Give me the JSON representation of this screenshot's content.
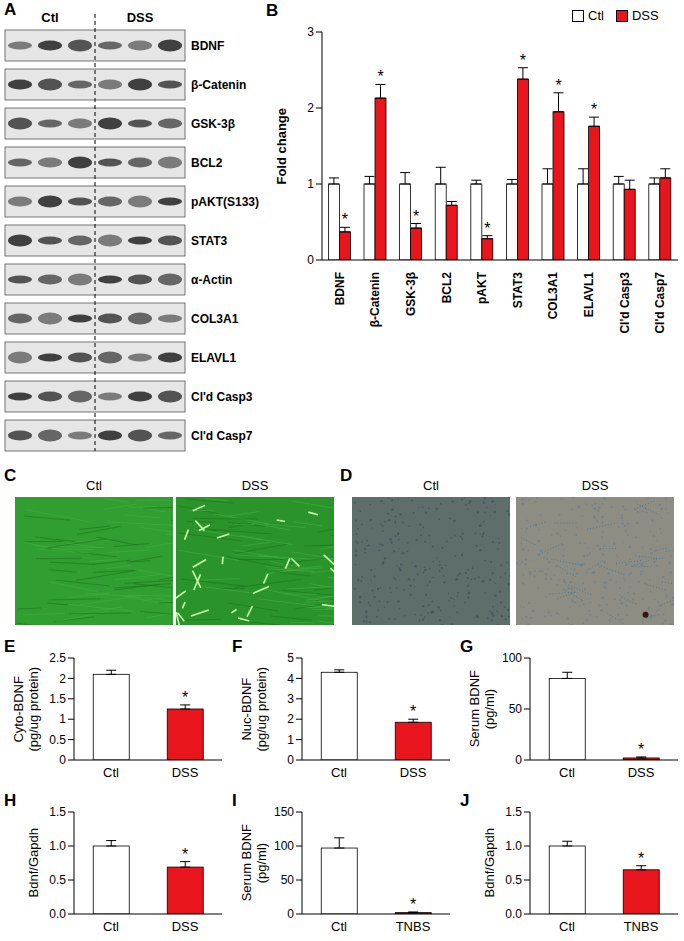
{
  "blot": {
    "panel": "A",
    "groups": [
      "Ctl",
      "DSS"
    ],
    "bands": [
      "BDNF",
      "β-Catenin",
      "GSK-3β",
      "BCL2",
      "pAKT(S133)",
      "STAT3",
      "α-Actin",
      "COL3A1",
      "ELAVL1",
      "Cl'd Casp3",
      "Cl'd Casp7"
    ]
  },
  "micrographs": [
    {
      "panel": "C",
      "images": [
        "Ctl",
        "DSS"
      ]
    },
    {
      "panel": "D",
      "images": [
        "Ctl",
        "DSS"
      ]
    }
  ],
  "chart_data": [
    {
      "panel": "B",
      "type": "bar",
      "categories": [
        "BDNF",
        "β-Catenin",
        "GSK-3β",
        "BCL2",
        "pAKT",
        "STAT3",
        "COL3A1",
        "ELAVL1",
        "Cl'd Casp3",
        "Cl'd Casp7"
      ],
      "ylabel": [
        "Fold change"
      ],
      "ylim": [
        0,
        3
      ],
      "yticks": [
        0,
        1,
        2,
        3
      ],
      "legend": "upper right",
      "series": [
        {
          "name": "Ctl",
          "color": "#ffffff",
          "values": [
            1,
            1,
            1,
            1,
            1,
            1,
            1,
            1,
            1,
            1
          ],
          "errors": [
            0.08,
            0.1,
            0.15,
            0.22,
            0.05,
            0.06,
            0.2,
            0.2,
            0.1,
            0.08
          ],
          "annotations": [
            null,
            null,
            null,
            null,
            null,
            null,
            null,
            null,
            null,
            null
          ]
        },
        {
          "name": "DSS",
          "color": "#e8161c",
          "values": [
            0.37,
            2.13,
            0.42,
            0.72,
            0.28,
            2.38,
            1.95,
            1.76,
            0.93,
            1.08
          ],
          "errors": [
            0.06,
            0.18,
            0.06,
            0.05,
            0.04,
            0.15,
            0.25,
            0.12,
            0.12,
            0.12
          ],
          "annotations": [
            "*",
            "*",
            "*",
            null,
            "*",
            "*",
            "*",
            "*",
            null,
            null
          ]
        }
      ]
    },
    {
      "panel": "E",
      "type": "bar",
      "categories": [
        "Ctl",
        "DSS"
      ],
      "values": [
        2.1,
        1.25
      ],
      "errors": [
        0.1,
        0.1
      ],
      "colors": [
        "#ffffff",
        "#e8161c"
      ],
      "annotations": [
        null,
        "*"
      ],
      "ylabel": [
        "Cyto-BDNF",
        "(pg/ug protein)"
      ],
      "ylim": [
        0,
        2.5
      ],
      "yticks": [
        0,
        0.5,
        1,
        1.5,
        2,
        2.5
      ]
    },
    {
      "panel": "F",
      "type": "bar",
      "categories": [
        "Ctl",
        "DSS"
      ],
      "values": [
        4.3,
        1.85
      ],
      "errors": [
        0.12,
        0.15
      ],
      "colors": [
        "#ffffff",
        "#e8161c"
      ],
      "annotations": [
        null,
        "*"
      ],
      "ylabel": [
        "Nuc-BDNF",
        "(pg/ug protein)"
      ],
      "ylim": [
        0,
        5
      ],
      "yticks": [
        0,
        1,
        2,
        3,
        4,
        5
      ]
    },
    {
      "panel": "G",
      "type": "bar",
      "categories": [
        "Ctl",
        "DSS"
      ],
      "values": [
        80,
        2
      ],
      "errors": [
        6,
        1
      ],
      "colors": [
        "#ffffff",
        "#e8161c"
      ],
      "annotations": [
        null,
        "*"
      ],
      "ylabel": [
        "Serum BDNF",
        "(pg/ml)"
      ],
      "ylim": [
        0,
        100
      ],
      "yticks": [
        0,
        50,
        100
      ]
    },
    {
      "panel": "H",
      "type": "bar",
      "categories": [
        "Ctl",
        "DSS"
      ],
      "values": [
        1,
        0.69
      ],
      "errors": [
        0.08,
        0.08
      ],
      "colors": [
        "#ffffff",
        "#e8161c"
      ],
      "annotations": [
        null,
        "*"
      ],
      "ylabel": [
        "Bdnf/Gapdh"
      ],
      "ylim": [
        0,
        1.5
      ],
      "yticks": [
        {
          "value": 0,
          "label": "0.0"
        },
        0.5,
        {
          "value": 1,
          "label": "1.0"
        },
        1.5
      ]
    },
    {
      "panel": "I",
      "type": "bar",
      "categories": [
        "Ctl",
        "TNBS"
      ],
      "values": [
        97,
        2
      ],
      "errors": [
        15,
        1
      ],
      "colors": [
        "#ffffff",
        "#e8161c"
      ],
      "annotations": [
        null,
        "*"
      ],
      "ylabel": [
        "Serum BDNF",
        "(pg/ml)"
      ],
      "ylim": [
        0,
        150
      ],
      "yticks": [
        0,
        50,
        100,
        150
      ]
    },
    {
      "panel": "J",
      "type": "bar",
      "categories": [
        "Ctl",
        "TNBS"
      ],
      "values": [
        1,
        0.65
      ],
      "errors": [
        0.07,
        0.06
      ],
      "colors": [
        "#ffffff",
        "#e8161c"
      ],
      "annotations": [
        null,
        "*"
      ],
      "ylabel": [
        "Bdnf/Gapdh"
      ],
      "ylim": [
        0,
        1.5
      ],
      "yticks": [
        {
          "value": 0,
          "label": "0.0"
        },
        0.5,
        {
          "value": 1,
          "label": "1.0"
        },
        1.5
      ]
    }
  ]
}
